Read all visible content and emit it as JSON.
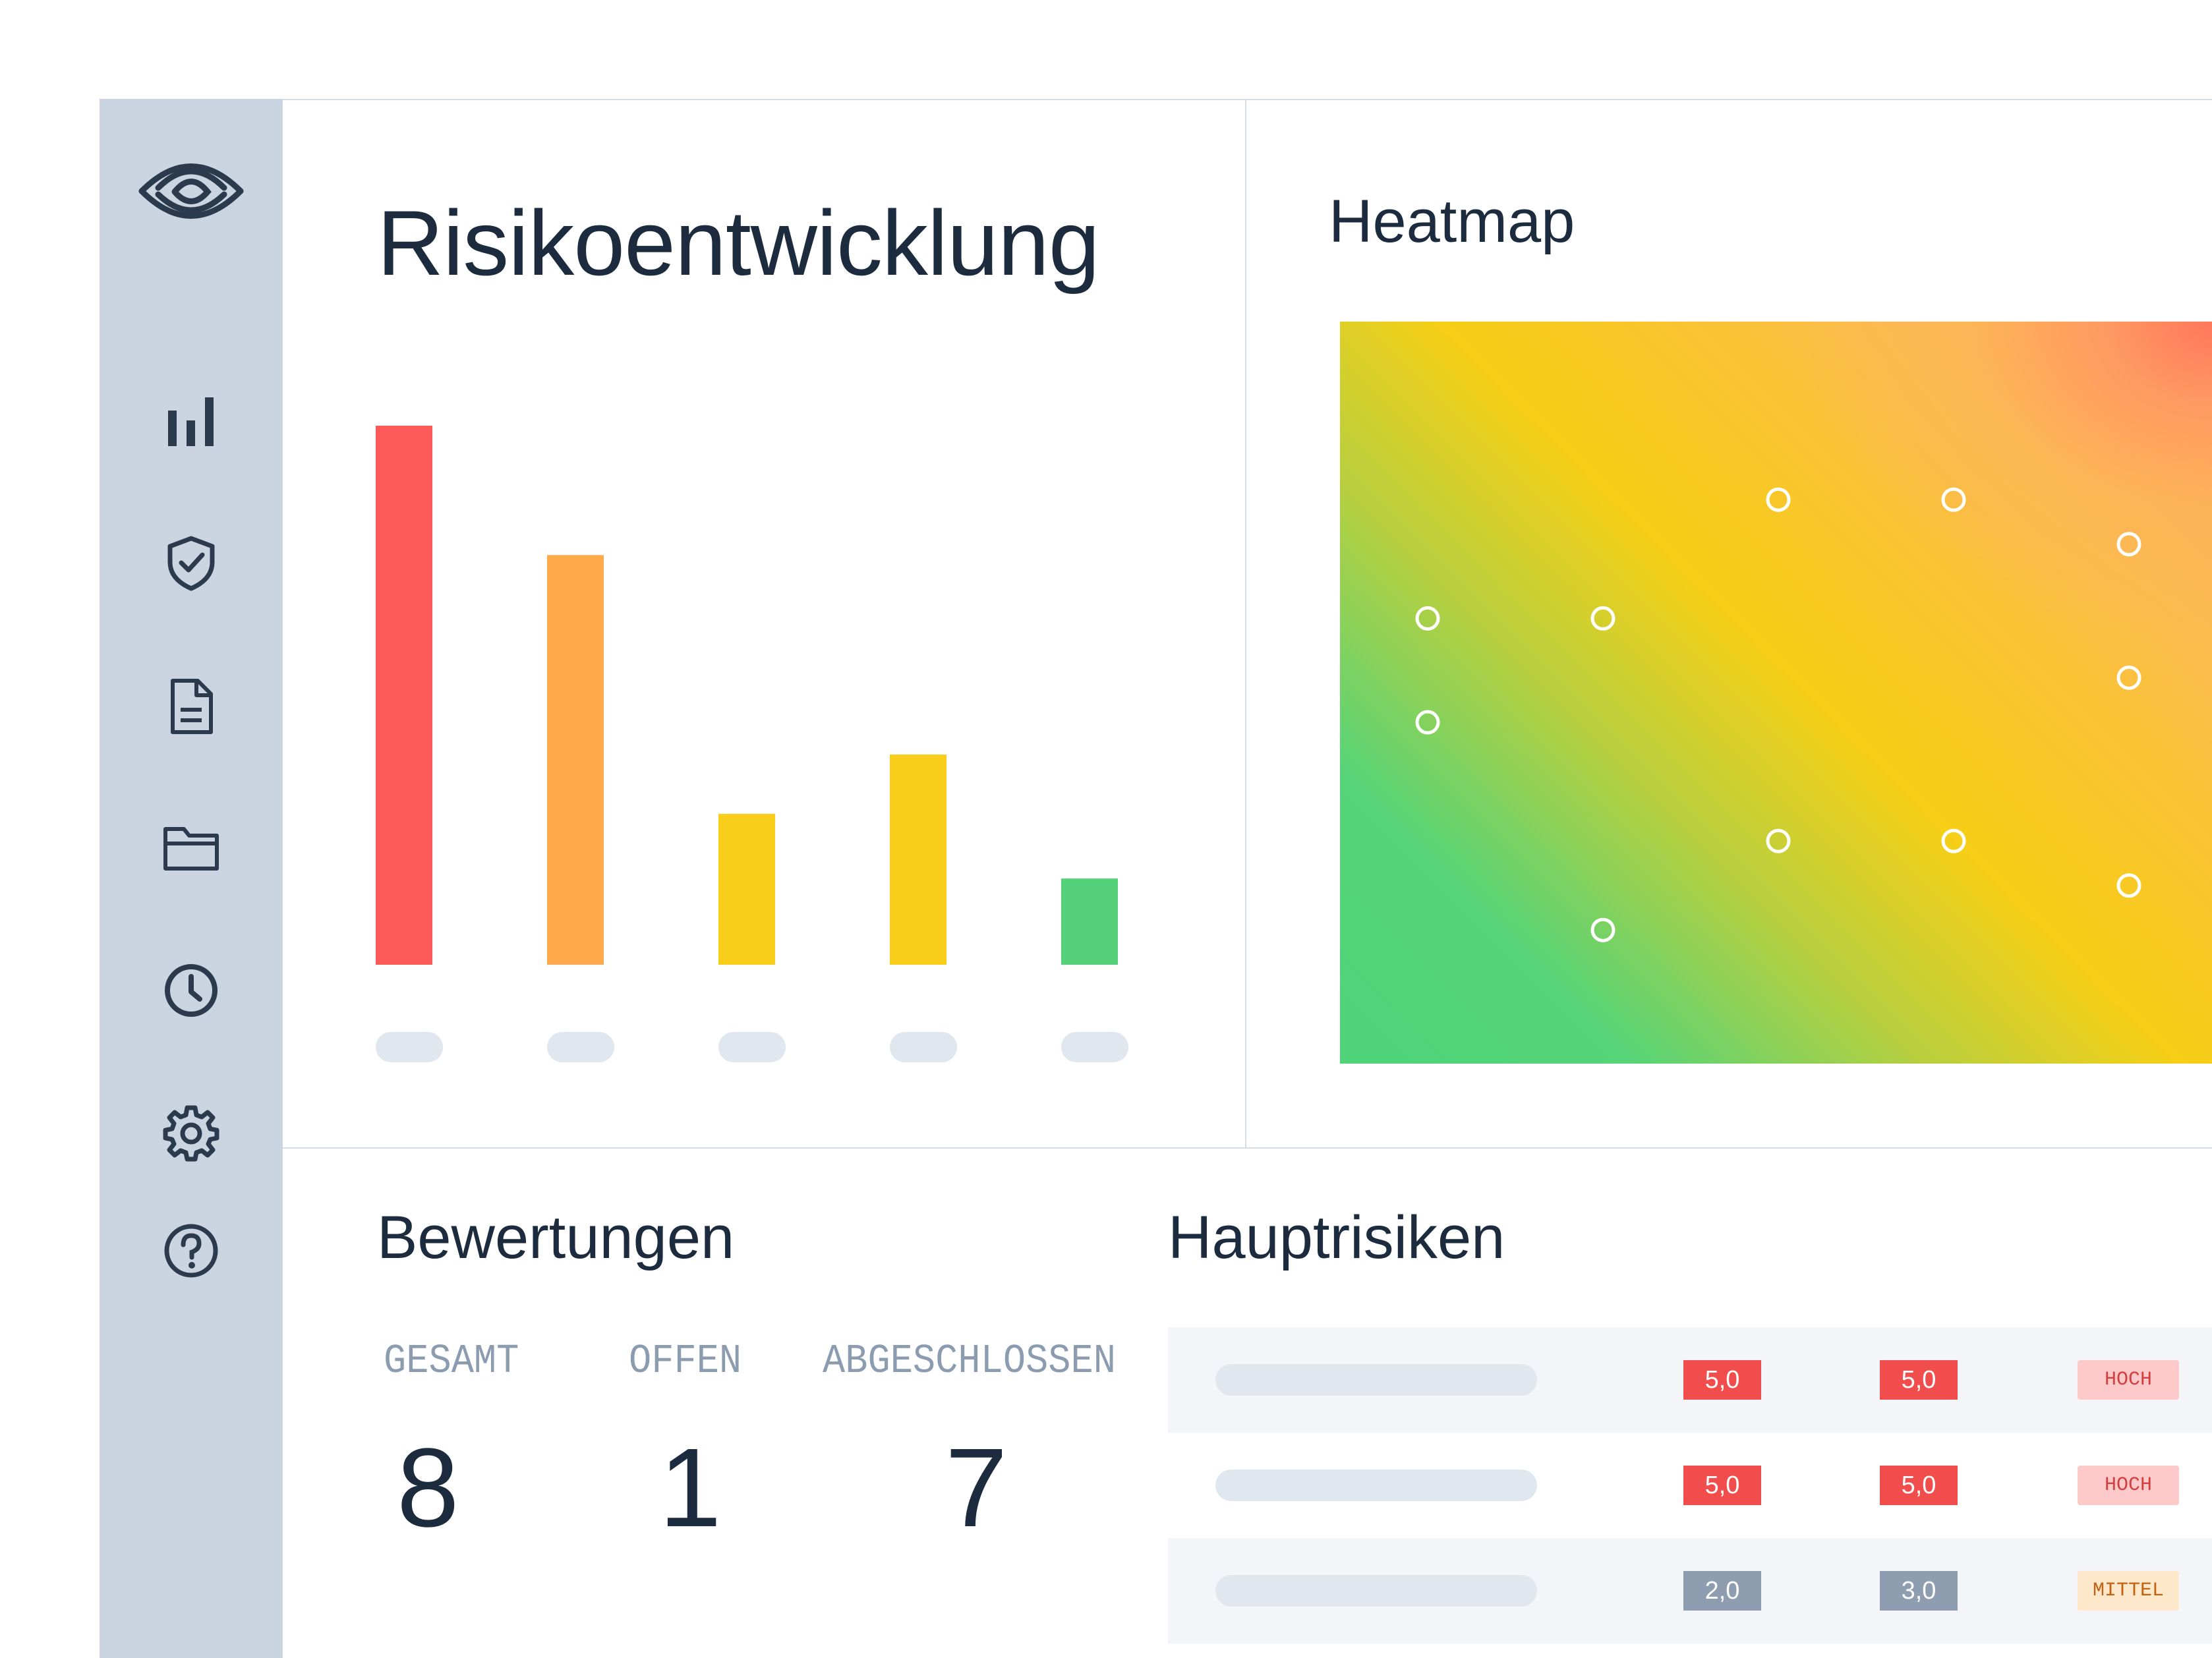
{
  "colors": {
    "red": "#fc5a58",
    "orange": "#fea94c",
    "yellow": "#f8ce1a",
    "green": "#55d279",
    "gray_score": "#8f9db1",
    "sidebar": "#cbd5e1",
    "text": "#1c2b3e",
    "muted": "#8c9cb0",
    "pill": "#e1e7ee"
  },
  "sidebar": {
    "logo": "eye-logo-icon",
    "items": [
      {
        "icon": "bar-chart-icon"
      },
      {
        "icon": "shield-check-icon"
      },
      {
        "icon": "document-icon"
      },
      {
        "icon": "folder-icon"
      },
      {
        "icon": "clock-icon"
      },
      {
        "icon": "gear-icon"
      },
      {
        "icon": "help-icon"
      }
    ]
  },
  "risk_panel": {
    "title": "Risikoentwicklung"
  },
  "heatmap_panel": {
    "title": "Heatmap"
  },
  "ratings": {
    "title": "Bewertungen",
    "total_label": "GESAMT",
    "total_value": "8",
    "open_label": "OFFEN",
    "open_value": "1",
    "closed_label": "ABGESCHLOSSEN",
    "closed_value": "7"
  },
  "top_risks": {
    "title": "Hauptrisiken",
    "rows": [
      {
        "score1": "5,0",
        "score2": "5,0",
        "level": "HOCH",
        "score_color": "#f14d4c",
        "level_bg": "#fec9c9",
        "level_fg": "#d33f3f"
      },
      {
        "score1": "5,0",
        "score2": "5,0",
        "level": "HOCH",
        "score_color": "#f14d4c",
        "level_bg": "#fec9c9",
        "level_fg": "#d33f3f"
      },
      {
        "score1": "2,0",
        "score2": "3,0",
        "level": "MITTEL",
        "score_color": "#8f9db1",
        "level_bg": "#fde8cc",
        "level_fg": "#c4620f"
      }
    ]
  },
  "chart_data": [
    {
      "type": "bar",
      "title": "Risikoentwicklung",
      "categories": [
        "",
        "",
        "",
        "",
        ""
      ],
      "values": [
        100,
        76,
        28,
        39,
        16
      ],
      "colors": [
        "#fc5a58",
        "#fea94c",
        "#f8ce1a",
        "#f8ce1a",
        "#55d279"
      ],
      "ylim": [
        0,
        100
      ],
      "grid": false
    },
    {
      "type": "scatter",
      "title": "Heatmap",
      "xlim": [
        0,
        5
      ],
      "ylim": [
        0,
        5
      ],
      "points": [
        {
          "x": 0.5,
          "y": 3.0
        },
        {
          "x": 1.5,
          "y": 3.0
        },
        {
          "x": 2.5,
          "y": 3.8
        },
        {
          "x": 3.5,
          "y": 3.8
        },
        {
          "x": 4.5,
          "y": 3.5
        },
        {
          "x": 0.5,
          "y": 2.3
        },
        {
          "x": 4.5,
          "y": 2.6
        },
        {
          "x": 2.5,
          "y": 1.5
        },
        {
          "x": 3.5,
          "y": 1.5
        },
        {
          "x": 4.5,
          "y": 1.2
        },
        {
          "x": 1.5,
          "y": 0.9
        }
      ],
      "grid": false
    }
  ]
}
